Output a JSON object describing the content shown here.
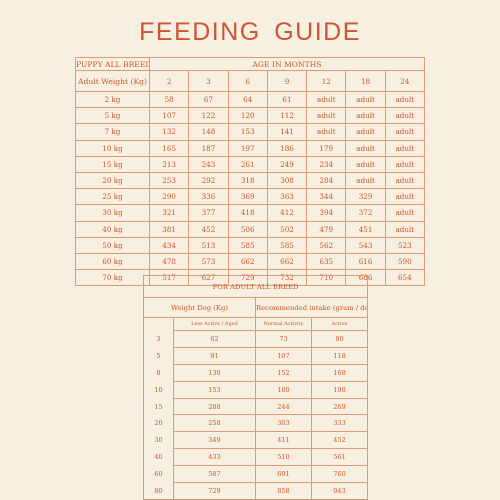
{
  "title": "FEEDING GUIDE",
  "puppy": {
    "breed_label": "PUPPY ALL BREED",
    "age_label": "AGE IN MONTHS",
    "weight_label": "Adult Weight (Kg)",
    "months": [
      "2",
      "3",
      "6",
      "9",
      "12",
      "18",
      "24"
    ],
    "rows": [
      {
        "weight": "2 kg",
        "values": [
          "58",
          "67",
          "64",
          "61",
          "adult",
          "adult",
          "adult"
        ]
      },
      {
        "weight": "5 kg",
        "values": [
          "107",
          "122",
          "120",
          "112",
          "adult",
          "adult",
          "adult"
        ]
      },
      {
        "weight": "7 kg",
        "values": [
          "132",
          "148",
          "153",
          "141",
          "adult",
          "adult",
          "adult"
        ]
      },
      {
        "weight": "10 kg",
        "values": [
          "165",
          "187",
          "197",
          "186",
          "179",
          "adult",
          "adult"
        ]
      },
      {
        "weight": "15 kg",
        "values": [
          "213",
          "243",
          "261",
          "249",
          "234",
          "adult",
          "adult"
        ]
      },
      {
        "weight": "20 kg",
        "values": [
          "253",
          "292",
          "318",
          "308",
          "284",
          "adult",
          "adult"
        ]
      },
      {
        "weight": "25 kg",
        "values": [
          "290",
          "336",
          "369",
          "363",
          "344",
          "329",
          "adult"
        ]
      },
      {
        "weight": "30 kg",
        "values": [
          "321",
          "377",
          "418",
          "412",
          "394",
          "372",
          "adult"
        ]
      },
      {
        "weight": "40 kg",
        "values": [
          "381",
          "452",
          "506",
          "502",
          "479",
          "451",
          "adult"
        ]
      },
      {
        "weight": "50 kg",
        "values": [
          "434",
          "513",
          "585",
          "585",
          "562",
          "543",
          "523"
        ]
      },
      {
        "weight": "60 kg",
        "values": [
          "478",
          "573",
          "662",
          "662",
          "635",
          "616",
          "590"
        ]
      },
      {
        "weight": "70 kg",
        "values": [
          "517",
          "627",
          "729",
          "732",
          "710",
          "686",
          "654"
        ]
      }
    ]
  },
  "adult": {
    "header": "FOR ADULT ALL BREED",
    "weight_label": "Weight Dog (Kg)",
    "intake_label": "Recommended intake (gram / day)",
    "col_less": "Less Active / Aged",
    "col_normal": "Normal Activity",
    "col_active": "Active",
    "rows": [
      {
        "weight": "3",
        "less": "62",
        "normal": "73",
        "active": "80"
      },
      {
        "weight": "5",
        "less": "91",
        "normal": "107",
        "active": "118"
      },
      {
        "weight": "8",
        "less": "130",
        "normal": "152",
        "active": "168"
      },
      {
        "weight": "10",
        "less": "153",
        "normal": "180",
        "active": "198"
      },
      {
        "weight": "15",
        "less": "208",
        "normal": "244",
        "active": "269"
      },
      {
        "weight": "20",
        "less": "258",
        "normal": "303",
        "active": "333"
      },
      {
        "weight": "30",
        "less": "349",
        "normal": "411",
        "active": "452"
      },
      {
        "weight": "40",
        "less": "433",
        "normal": "510",
        "active": "561"
      },
      {
        "weight": "60",
        "less": "587",
        "normal": "691",
        "active": "760"
      },
      {
        "weight": "80",
        "less": "729",
        "normal": "858",
        "active": "943"
      }
    ]
  }
}
